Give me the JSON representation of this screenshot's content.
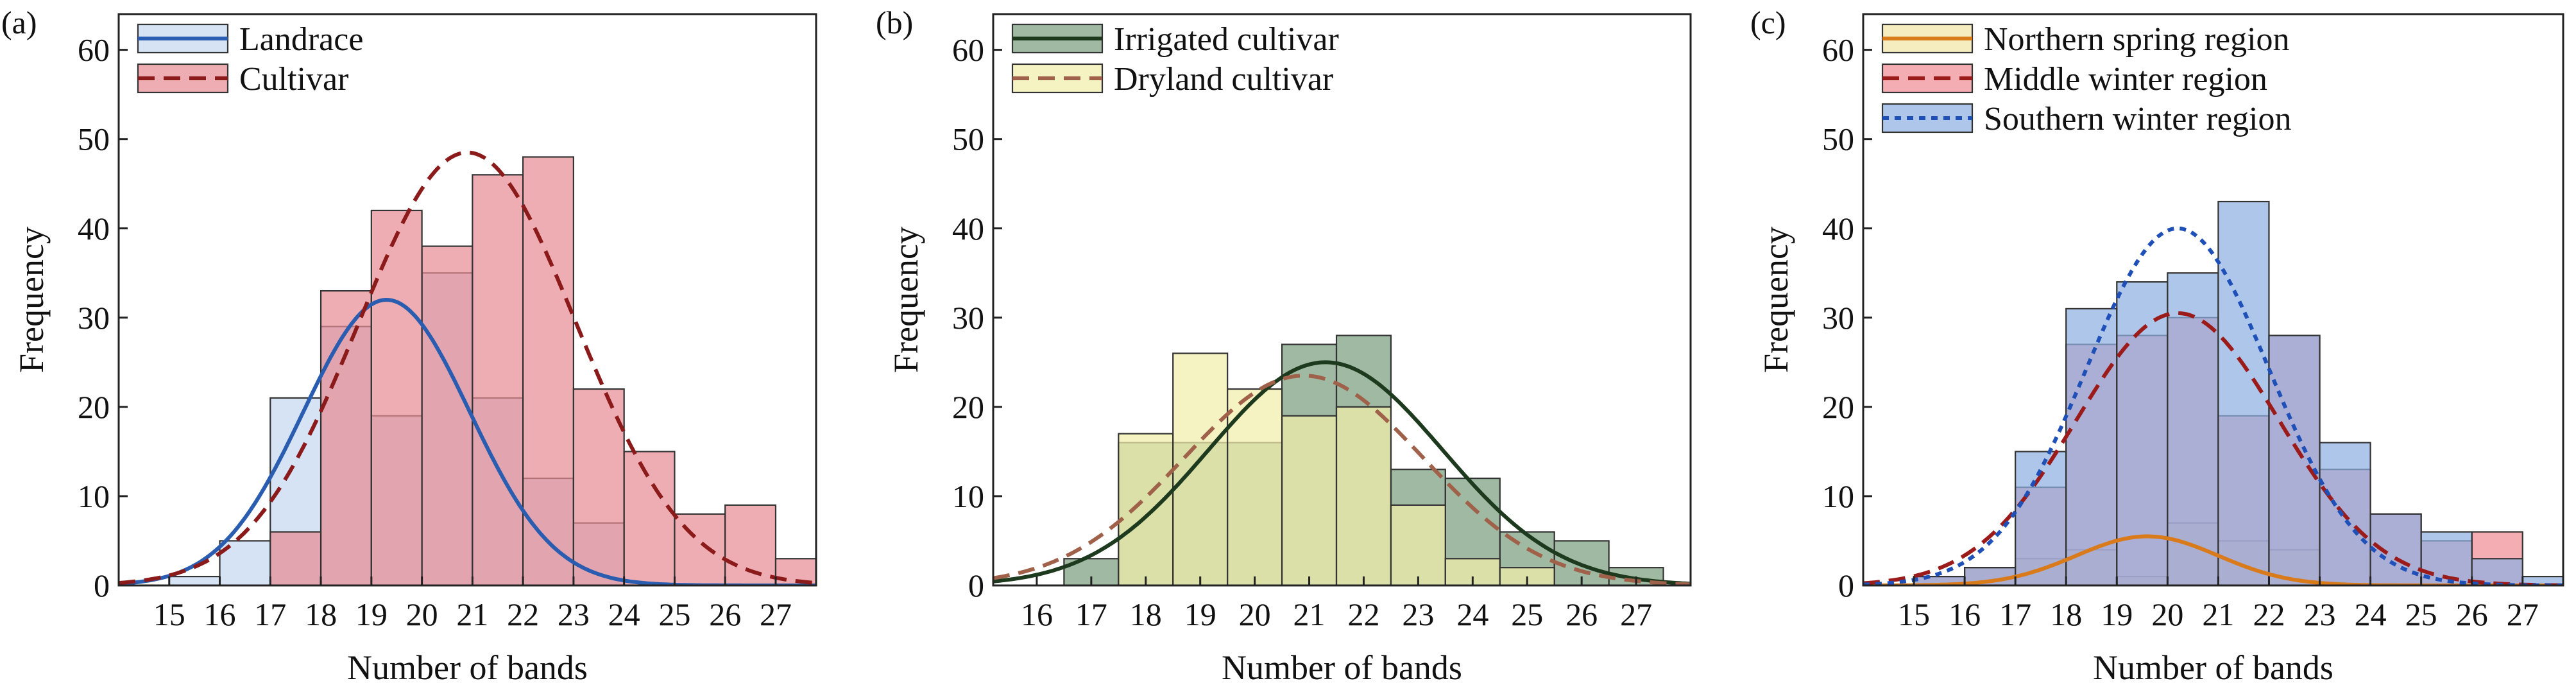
{
  "chart_data": [
    {
      "panel": "(a)",
      "type": "bar",
      "xlabel": "Number of bands",
      "ylabel": "Frequency",
      "xlim": [
        14,
        27.8
      ],
      "ylim": [
        0,
        64
      ],
      "xticks": [
        15,
        16,
        17,
        18,
        19,
        20,
        21,
        22,
        23,
        24,
        25,
        26,
        27
      ],
      "yticks": [
        0,
        10,
        20,
        30,
        40,
        50,
        60
      ],
      "legend_position": "top-left",
      "series": [
        {
          "name": "Landrace",
          "color": "#c5d8f0",
          "edge": "#333333",
          "line_color": "#2a5db0",
          "line_style": "solid",
          "bins": [
            [
              14,
              15,
              0
            ],
            [
              15,
              16,
              1
            ],
            [
              16,
              17,
              5
            ],
            [
              17,
              18,
              21
            ],
            [
              18,
              19,
              29
            ],
            [
              19,
              20,
              19
            ],
            [
              20,
              21,
              35
            ],
            [
              21,
              22,
              21
            ],
            [
              22,
              23,
              12
            ],
            [
              23,
              24,
              7
            ]
          ],
          "curve": {
            "mean": 19.3,
            "sd": 1.65,
            "peak": 32
          }
        },
        {
          "name": "Cultivar",
          "color": "#e88e96",
          "edge": "#333333",
          "line_color": "#8b1a1a",
          "line_style": "dashed",
          "bins": [
            [
              16,
              17,
              0
            ],
            [
              17,
              18,
              6
            ],
            [
              18,
              19,
              33
            ],
            [
              19,
              20,
              42
            ],
            [
              20,
              21,
              38
            ],
            [
              21,
              22,
              46
            ],
            [
              22,
              23,
              48
            ],
            [
              23,
              24,
              22
            ],
            [
              24,
              25,
              15
            ],
            [
              25,
              26,
              8
            ],
            [
              26,
              27,
              9
            ],
            [
              27,
              28,
              3
            ]
          ],
          "curve": {
            "mean": 20.9,
            "sd": 2.15,
            "peak": 48.5
          }
        }
      ]
    },
    {
      "panel": "(b)",
      "type": "bar",
      "xlabel": "Number of bands",
      "ylabel": "Frequency",
      "xlim": [
        15.2,
        28
      ],
      "ylim": [
        0,
        64
      ],
      "xticks": [
        16,
        17,
        18,
        19,
        20,
        21,
        22,
        23,
        24,
        25,
        26,
        27
      ],
      "yticks": [
        0,
        10,
        20,
        30,
        40,
        50,
        60
      ],
      "legend_position": "top-left",
      "series": [
        {
          "name": "Irrigated cultivar",
          "color": "#7a9e7e",
          "edge": "#333333",
          "line_color": "#1e3a1e",
          "line_style": "solid",
          "bins": [
            [
              16.5,
              17.5,
              3
            ],
            [
              17.5,
              18.5,
              16
            ],
            [
              18.5,
              19.5,
              16
            ],
            [
              19.5,
              20.5,
              16
            ],
            [
              20.5,
              21.5,
              27
            ],
            [
              21.5,
              22.5,
              28
            ],
            [
              22.5,
              23.5,
              13
            ],
            [
              23.5,
              24.5,
              12
            ],
            [
              24.5,
              25.5,
              6
            ],
            [
              25.5,
              26.5,
              5
            ],
            [
              26.5,
              27.5,
              2
            ]
          ],
          "curve": {
            "mean": 21.3,
            "sd": 2.15,
            "peak": 25
          }
        },
        {
          "name": "Dryland cultivar",
          "color": "#f3eeaa",
          "edge": "#333333",
          "line_color": "#a0614a",
          "line_style": "dashed",
          "bins": [
            [
              17.5,
              18.5,
              17
            ],
            [
              18.5,
              19.5,
              26
            ],
            [
              19.5,
              20.5,
              22
            ],
            [
              20.5,
              21.5,
              19
            ],
            [
              21.5,
              22.5,
              20
            ],
            [
              22.5,
              23.5,
              9
            ],
            [
              23.5,
              24.5,
              3
            ],
            [
              24.5,
              25.5,
              2
            ]
          ],
          "curve": {
            "mean": 20.9,
            "sd": 2.2,
            "peak": 23.5
          }
        }
      ]
    },
    {
      "panel": "(c)",
      "type": "bar",
      "xlabel": "Number of bands",
      "ylabel": "Frequency",
      "xlim": [
        14,
        27.8
      ],
      "ylim": [
        0,
        64
      ],
      "xticks": [
        15,
        16,
        17,
        18,
        19,
        20,
        21,
        22,
        23,
        24,
        25,
        26,
        27
      ],
      "yticks": [
        0,
        10,
        20,
        30,
        40,
        50,
        60
      ],
      "legend_position": "top-left",
      "series": [
        {
          "name": "Northern spring region",
          "color": "#f1e6a6",
          "edge": "#333333",
          "line_color": "#d97a1b",
          "line_style": "solid",
          "bins": [
            [
              16,
              17,
              2
            ],
            [
              17,
              18,
              3
            ],
            [
              18,
              19,
              4
            ],
            [
              19,
              20,
              1
            ],
            [
              20,
              21,
              7
            ],
            [
              21,
              22,
              5
            ],
            [
              22,
              23,
              4
            ]
          ],
          "curve": {
            "mean": 19.6,
            "sd": 1.4,
            "peak": 5.5
          }
        },
        {
          "name": "Middle winter region",
          "color": "#ee8e96",
          "edge": "#333333",
          "line_color": "#9b1b1b",
          "line_style": "dashed",
          "bins": [
            [
              15,
              16,
              1
            ],
            [
              16,
              17,
              2
            ],
            [
              17,
              18,
              11
            ],
            [
              18,
              19,
              27
            ],
            [
              19,
              20,
              28
            ],
            [
              20,
              21,
              30
            ],
            [
              21,
              22,
              19
            ],
            [
              22,
              23,
              28
            ],
            [
              23,
              24,
              13
            ],
            [
              24,
              25,
              8
            ],
            [
              25,
              26,
              5
            ],
            [
              26,
              27,
              6
            ]
          ],
          "curve": {
            "mean": 20.2,
            "sd": 2.0,
            "peak": 30.5
          }
        },
        {
          "name": "Southern winter region",
          "color": "#8fb0e2",
          "edge": "#333333",
          "line_color": "#1f50b8",
          "line_style": "dotted",
          "bins": [
            [
              14,
              15,
              0
            ],
            [
              15,
              16,
              1
            ],
            [
              16,
              17,
              2
            ],
            [
              17,
              18,
              15
            ],
            [
              18,
              19,
              31
            ],
            [
              19,
              20,
              34
            ],
            [
              20,
              21,
              35
            ],
            [
              21,
              22,
              43
            ],
            [
              22,
              23,
              28
            ],
            [
              23,
              24,
              16
            ],
            [
              24,
              25,
              8
            ],
            [
              25,
              26,
              6
            ],
            [
              26,
              27,
              3
            ],
            [
              27,
              28,
              1
            ]
          ],
          "curve": {
            "mean": 20.2,
            "sd": 1.8,
            "peak": 40
          }
        }
      ]
    }
  ]
}
